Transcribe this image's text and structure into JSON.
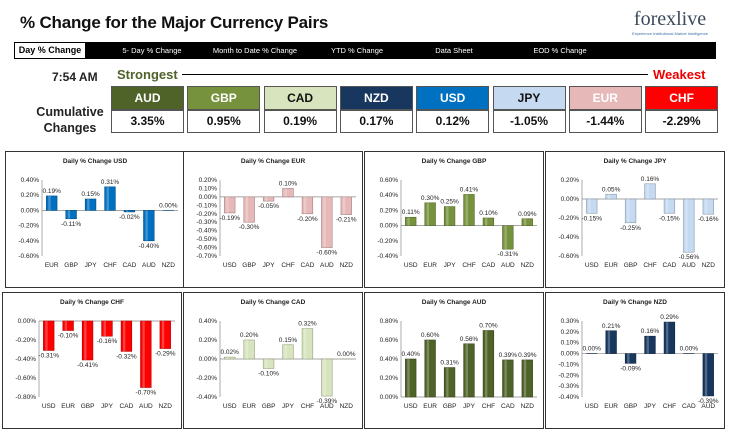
{
  "header": {
    "title": "% Change for the Major Currency Pairs",
    "logo_brand": "forexlive",
    "logo_tagline": "Experience Institutional Market Intelligence"
  },
  "nav": {
    "tabs": [
      {
        "label": "Day % Change",
        "active": true
      },
      {
        "label": "5- Day % Change",
        "active": false
      },
      {
        "label": "Month to Date % Change",
        "active": false
      },
      {
        "label": "YTD % Change",
        "active": false
      },
      {
        "label": "Data Sheet",
        "active": false
      },
      {
        "label": "EOD % Change",
        "active": false
      }
    ]
  },
  "summary": {
    "time": "7:54 AM",
    "strongest_label": "Strongest",
    "weakest_label": "Weakest",
    "cumulative_label_1": "Cumulative",
    "cumulative_label_2": "Changes",
    "currencies": [
      {
        "code": "AUD",
        "value": "3.35%",
        "bg": "#4f6228",
        "fg": "#ffffff"
      },
      {
        "code": "GBP",
        "value": "0.95%",
        "bg": "#76923c",
        "fg": "#ffffff"
      },
      {
        "code": "CAD",
        "value": "0.19%",
        "bg": "#d7e4bd",
        "fg": "#111111"
      },
      {
        "code": "NZD",
        "value": "0.17%",
        "bg": "#17375e",
        "fg": "#ffffff"
      },
      {
        "code": "USD",
        "value": "0.12%",
        "bg": "#0070c0",
        "fg": "#ffffff"
      },
      {
        "code": "JPY",
        "value": "-1.05%",
        "bg": "#c5d9f1",
        "fg": "#111111"
      },
      {
        "code": "EUR",
        "value": "-1.44%",
        "bg": "#e6b9b8",
        "fg": "#ffffff"
      },
      {
        "code": "CHF",
        "value": "-2.29%",
        "bg": "#ff0000",
        "fg": "#ffffff"
      }
    ]
  },
  "chart_data": [
    {
      "type": "bar",
      "title": "Daily % Change USD",
      "color": "#0070c0",
      "categories": [
        "EUR",
        "GBP",
        "JPY",
        "CHF",
        "CAD",
        "AUD",
        "NZD"
      ],
      "values": [
        0.19,
        -0.11,
        0.15,
        0.31,
        -0.02,
        -0.4,
        0.0
      ],
      "value_labels": [
        "0.19%",
        "-0.11%",
        "0.15%",
        "0.31%",
        "-0.02%",
        "-0.40%",
        "0.00%"
      ],
      "ylim": [
        -0.6,
        0.4
      ],
      "yticks": [
        "0.40%",
        "0.20%",
        "0.00%",
        "-0.20%",
        "-0.40%",
        "-0.60%"
      ]
    },
    {
      "type": "bar",
      "title": "Daily % Change EUR",
      "color": "#e6b9b8",
      "categories": [
        "USD",
        "GBP",
        "JPY",
        "CHF",
        "CAD",
        "AUD",
        "NZD"
      ],
      "values": [
        -0.19,
        -0.3,
        -0.05,
        0.1,
        -0.2,
        -0.6,
        -0.21
      ],
      "value_labels": [
        "-0.19%",
        "-0.30%",
        "-0.05%",
        "0.10%",
        "-0.20%",
        "-0.60%",
        "-0.21%"
      ],
      "ylim": [
        -0.7,
        0.2
      ],
      "yticks": [
        "0.20%",
        "0.10%",
        "0.00%",
        "-0.10%",
        "-0.20%",
        "-0.30%",
        "-0.40%",
        "-0.50%",
        "-0.60%",
        "-0.70%"
      ]
    },
    {
      "type": "bar",
      "title": "Daily % Change GBP",
      "color": "#76923c",
      "categories": [
        "USD",
        "EUR",
        "JPY",
        "CHF",
        "CAD",
        "AUD",
        "NZD"
      ],
      "values": [
        0.11,
        0.3,
        0.25,
        0.41,
        0.1,
        -0.31,
        0.09
      ],
      "value_labels": [
        "0.11%",
        "0.30%",
        "0.25%",
        "0.41%",
        "0.10%",
        "-0.31%",
        "0.09%"
      ],
      "ylim": [
        -0.4,
        0.6
      ],
      "yticks": [
        "0.60%",
        "0.40%",
        "0.20%",
        "0.00%",
        "-0.20%",
        "-0.40%"
      ]
    },
    {
      "type": "bar",
      "title": "Daily % Change JPY",
      "color": "#c5d9f1",
      "categories": [
        "USD",
        "EUR",
        "GBP",
        "CHF",
        "CAD",
        "AUD",
        "NZD"
      ],
      "values": [
        -0.15,
        0.05,
        -0.25,
        0.16,
        -0.15,
        -0.56,
        -0.16
      ],
      "value_labels": [
        "-0.15%",
        "0.05%",
        "-0.25%",
        "0.16%",
        "-0.15%",
        "-0.56%",
        "-0.16%"
      ],
      "ylim": [
        -0.6,
        0.2
      ],
      "yticks": [
        "0.20%",
        "0.00%",
        "-0.20%",
        "-0.40%",
        "-0.60%"
      ]
    },
    {
      "type": "bar",
      "title": "Daily % Change CHF",
      "color": "#ff0000",
      "categories": [
        "USD",
        "EUR",
        "GBP",
        "JPY",
        "CAD",
        "AUD",
        "NZD"
      ],
      "values": [
        -0.31,
        -0.1,
        -0.41,
        -0.16,
        -0.32,
        -0.7,
        -0.29
      ],
      "value_labels": [
        "-0.31%",
        "-0.10%",
        "-0.41%",
        "-0.16%",
        "-0.32%",
        "-0.70%",
        "-0.29%"
      ],
      "ylim": [
        -0.8,
        0.0
      ],
      "yticks": [
        "0.00%",
        "-0.20%",
        "-0.40%",
        "-0.60%",
        "-0.80%"
      ]
    },
    {
      "type": "bar",
      "title": "Daily % Change CAD",
      "color": "#d7e4bd",
      "categories": [
        "USD",
        "EUR",
        "GBP",
        "JPY",
        "CHF",
        "AUD",
        "NZD"
      ],
      "values": [
        0.02,
        0.2,
        -0.1,
        0.15,
        0.32,
        -0.39,
        0.0
      ],
      "value_labels": [
        "0.02%",
        "0.20%",
        "-0.10%",
        "0.15%",
        "0.32%",
        "-0.39%",
        "0.00%"
      ],
      "ylim": [
        -0.4,
        0.4
      ],
      "yticks": [
        "0.40%",
        "0.20%",
        "0.00%",
        "-0.20%",
        "-0.40%"
      ]
    },
    {
      "type": "bar",
      "title": "Daily % Change AUD",
      "color": "#4f6228",
      "categories": [
        "USD",
        "EUR",
        "GBP",
        "JPY",
        "CHF",
        "CAD",
        "NZD"
      ],
      "values": [
        0.4,
        0.6,
        0.31,
        0.56,
        0.7,
        0.39,
        0.39
      ],
      "value_labels": [
        "0.40%",
        "0.60%",
        "0.31%",
        "0.56%",
        "0.70%",
        "0.39%",
        "0.39%"
      ],
      "ylim": [
        0.0,
        0.8
      ],
      "yticks": [
        "0.80%",
        "0.60%",
        "0.40%",
        "0.20%",
        "0.00%"
      ]
    },
    {
      "type": "bar",
      "title": "Daily % Change NZD",
      "color": "#17375e",
      "categories": [
        "USD",
        "EUR",
        "GBP",
        "JPY",
        "CHF",
        "CAD",
        "AUD"
      ],
      "values": [
        0.0,
        0.21,
        -0.09,
        0.16,
        0.29,
        0.0,
        -0.39
      ],
      "value_labels": [
        "0.00%",
        "0.21%",
        "-0.09%",
        "0.16%",
        "0.29%",
        "0.00%",
        "-0.39%"
      ],
      "ylim": [
        -0.4,
        0.3
      ],
      "yticks": [
        "0.30%",
        "0.20%",
        "0.10%",
        "0.00%",
        "-0.10%",
        "-0.20%",
        "-0.30%",
        "-0.40%"
      ]
    }
  ]
}
